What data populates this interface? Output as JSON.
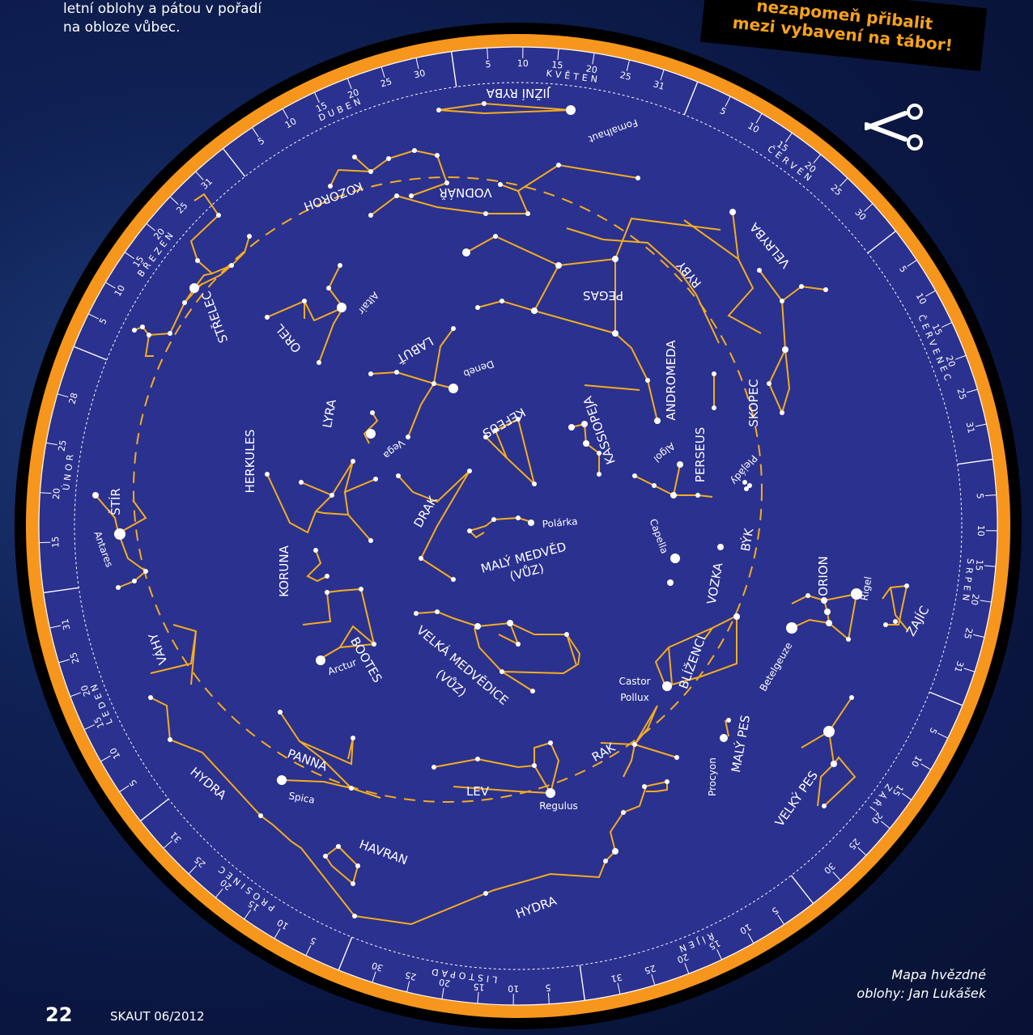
{
  "intro_text": "letní oblohy a pátou v pořadí na obloze vůbec.",
  "banner": {
    "line1": "nezapomeň přibalit",
    "line2": "mezi vybavení na tábor!"
  },
  "credit": {
    "line1": "Mapa hvězdné",
    "line2": "oblohy: Jan Lukášek"
  },
  "page_number": "22",
  "magazine": "SKAUT 06/2012",
  "colors": {
    "sky": "#2b318f",
    "ring": "#f7961d",
    "lines": "#f5ad1d",
    "text": "#ffffff",
    "banner_text": "#f7a21b"
  },
  "months": [
    {
      "name": "ÚNOR",
      "days": [
        "15",
        "20",
        "25",
        "28"
      ]
    },
    {
      "name": "BŘEZEN",
      "days": [
        "5",
        "10",
        "15",
        "20",
        "25",
        "31"
      ]
    },
    {
      "name": "DUBEN",
      "days": [
        "5",
        "10",
        "15",
        "20",
        "25",
        "30"
      ]
    },
    {
      "name": "KVĚTEN",
      "days": [
        "5",
        "10",
        "15",
        "20",
        "25",
        "31"
      ]
    },
    {
      "name": "ČERVEN",
      "days": [
        "5",
        "10",
        "15",
        "20",
        "25",
        "30"
      ]
    },
    {
      "name": "ČERVENEC",
      "days": [
        "5",
        "10",
        "15",
        "20",
        "25",
        "31"
      ]
    },
    {
      "name": "SRPEN",
      "days": [
        "5",
        "10",
        "15",
        "20",
        "25",
        "31"
      ]
    },
    {
      "name": "ZÁŘÍ",
      "days": [
        "5",
        "10",
        "15",
        "20",
        "25",
        "30"
      ]
    },
    {
      "name": "ŘÍJEN",
      "days": [
        "5",
        "10",
        "15",
        "20",
        "25",
        "31"
      ]
    },
    {
      "name": "LISTOPAD",
      "days": [
        "5",
        "10",
        "15",
        "20",
        "25",
        "30"
      ]
    },
    {
      "name": "PROSINEC",
      "days": [
        "5",
        "10",
        "15",
        "20",
        "25",
        "31"
      ]
    },
    {
      "name": "LEDEN",
      "days": [
        "5",
        "10",
        "15",
        "20",
        "25",
        "31"
      ]
    }
  ],
  "constellations": {
    "jizni_ryba": "JIŽNÍ RYBA",
    "kozoroh": "KOZOROH",
    "vodnar": "VODNÁŘ",
    "strelec": "STŘELEC",
    "orel": "OREL",
    "labut": "LABUŤ",
    "pegas": "PEGAS",
    "ryby": "RYBY",
    "velryba": "VELRYBA",
    "andromeda": "ANDROMEDA",
    "kefeus": "KEFEUS",
    "kassiopeja": "KASSIOPEJA",
    "lyra": "LYRA",
    "herkules": "HERKULES",
    "drak": "DRAK",
    "maly_medved": "MALÝ MEDVĚD",
    "vuz": "(VŮZ)",
    "perseus": "PERSEUS",
    "skopec": "SKOPEC",
    "stir": "ŠTÍR",
    "koruna": "KORUNA",
    "byk": "BÝK",
    "vozka": "VOZKA",
    "orion": "ORION",
    "zajic": "ZAJÍC",
    "vahy": "VÁHY",
    "bootes": "BOOTES",
    "velka_medvedice": "VELKÁ MEDVĚDICE",
    "blizenci": "BLÍŽENCI",
    "maly_pes": "MALÝ PES",
    "velky_pes": "VELKÝ PES",
    "panna": "PANNA",
    "hydra": "HYDRA",
    "lev": "LEV",
    "rak": "RAK",
    "havran": "HAVRAN"
  },
  "stars": {
    "fomalhaut": "Fomalhaut",
    "altair": "Altair",
    "deneb": "Deneb",
    "vega": "Vega",
    "algol": "Algol",
    "plejady": "Plejády",
    "polarka": "Polárka",
    "capella": "Capella",
    "antares": "Antares",
    "arctur": "Arctur",
    "rigel": "Rigel",
    "betelgeuze": "Betelgeuze",
    "castor": "Castor",
    "pollux": "Pollux",
    "procyon": "Procyon",
    "spica": "Spica",
    "regulus": "Regulus"
  }
}
